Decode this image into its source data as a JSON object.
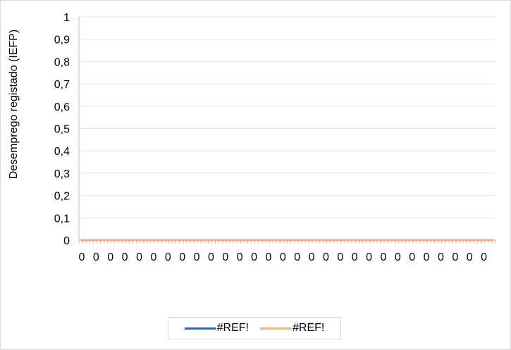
{
  "chart_data": {
    "type": "line",
    "ylabel": "Desemprego registado (IEFP)",
    "ylim": [
      0,
      1
    ],
    "yticks": [
      "0",
      "0,1",
      "0,2",
      "0,3",
      "0,4",
      "0,5",
      "0,6",
      "0,7",
      "0,8",
      "0,9",
      "1"
    ],
    "categories": [
      "0",
      "0",
      "0",
      "0",
      "0",
      "0",
      "0",
      "0",
      "0",
      "0",
      "0",
      "0",
      "0",
      "0",
      "0",
      "0",
      "0",
      "0",
      "0",
      "0",
      "0",
      "0",
      "0",
      "0",
      "0",
      "0",
      "0",
      "0",
      "0",
      "0",
      "0",
      "0",
      "0",
      "0",
      "0",
      "0",
      "0",
      "0",
      "0",
      "0",
      "0",
      "0",
      "0",
      "0",
      "0",
      "0",
      "0",
      "0",
      "0",
      "0",
      "0",
      "0",
      "0",
      "0",
      "0",
      "0",
      "0",
      "0",
      "0",
      "0",
      "0",
      "0",
      "0",
      "0",
      "0",
      "0",
      "0",
      "0",
      "0",
      "0",
      "0",
      "0",
      "0",
      "0",
      "0",
      "0",
      "0",
      "0",
      "0",
      "0",
      "0",
      "0",
      "0",
      "0",
      "0",
      "0",
      "0",
      "0",
      "0",
      "0",
      "0",
      "0",
      "0",
      "0",
      "0",
      "0",
      "0",
      "0",
      "0",
      "0",
      "0",
      "0",
      "0",
      "0",
      "0",
      "0",
      "0",
      "0",
      "0",
      "0",
      "0",
      "0",
      "0",
      "0",
      "0",
      "0"
    ],
    "x_label_every": 4,
    "series": [
      {
        "name": "#REF!",
        "color": "#2e62a8",
        "values": [
          0,
          0,
          0,
          0,
          0,
          0,
          0,
          0,
          0,
          0,
          0,
          0,
          0,
          0,
          0,
          0,
          0,
          0,
          0,
          0,
          0,
          0,
          0,
          0,
          0,
          0,
          0,
          0,
          0,
          0,
          0,
          0,
          0,
          0,
          0,
          0,
          0,
          0,
          0,
          0,
          0,
          0,
          0,
          0,
          0,
          0,
          0,
          0,
          0,
          0,
          0,
          0,
          0,
          0,
          0,
          0,
          0,
          0,
          0,
          0,
          0,
          0,
          0,
          0,
          0,
          0,
          0,
          0,
          0,
          0,
          0,
          0,
          0,
          0,
          0,
          0,
          0,
          0,
          0,
          0,
          0,
          0,
          0,
          0,
          0,
          0,
          0,
          0,
          0,
          0,
          0,
          0,
          0,
          0,
          0,
          0,
          0,
          0,
          0,
          0,
          0,
          0,
          0,
          0,
          0,
          0,
          0,
          0,
          0,
          0,
          0,
          0,
          0,
          0,
          0,
          0
        ]
      },
      {
        "name": "#REF!",
        "color": "#f4b183",
        "values": [
          0,
          0,
          0,
          0,
          0,
          0,
          0,
          0,
          0,
          0,
          0,
          0,
          0,
          0,
          0,
          0,
          0,
          0,
          0,
          0,
          0,
          0,
          0,
          0,
          0,
          0,
          0,
          0,
          0,
          0,
          0,
          0,
          0,
          0,
          0,
          0,
          0,
          0,
          0,
          0,
          0,
          0,
          0,
          0,
          0,
          0,
          0,
          0,
          0,
          0,
          0,
          0,
          0,
          0,
          0,
          0,
          0,
          0,
          0,
          0,
          0,
          0,
          0,
          0,
          0,
          0,
          0,
          0,
          0,
          0,
          0,
          0,
          0,
          0,
          0,
          0,
          0,
          0,
          0,
          0,
          0,
          0,
          0,
          0,
          0,
          0,
          0,
          0,
          0,
          0,
          0,
          0,
          0,
          0,
          0,
          0,
          0,
          0,
          0,
          0,
          0,
          0,
          0,
          0,
          0,
          0,
          0,
          0,
          0,
          0,
          0,
          0,
          0,
          0,
          0,
          0
        ]
      }
    ],
    "grid": true,
    "legend": "bottom"
  }
}
